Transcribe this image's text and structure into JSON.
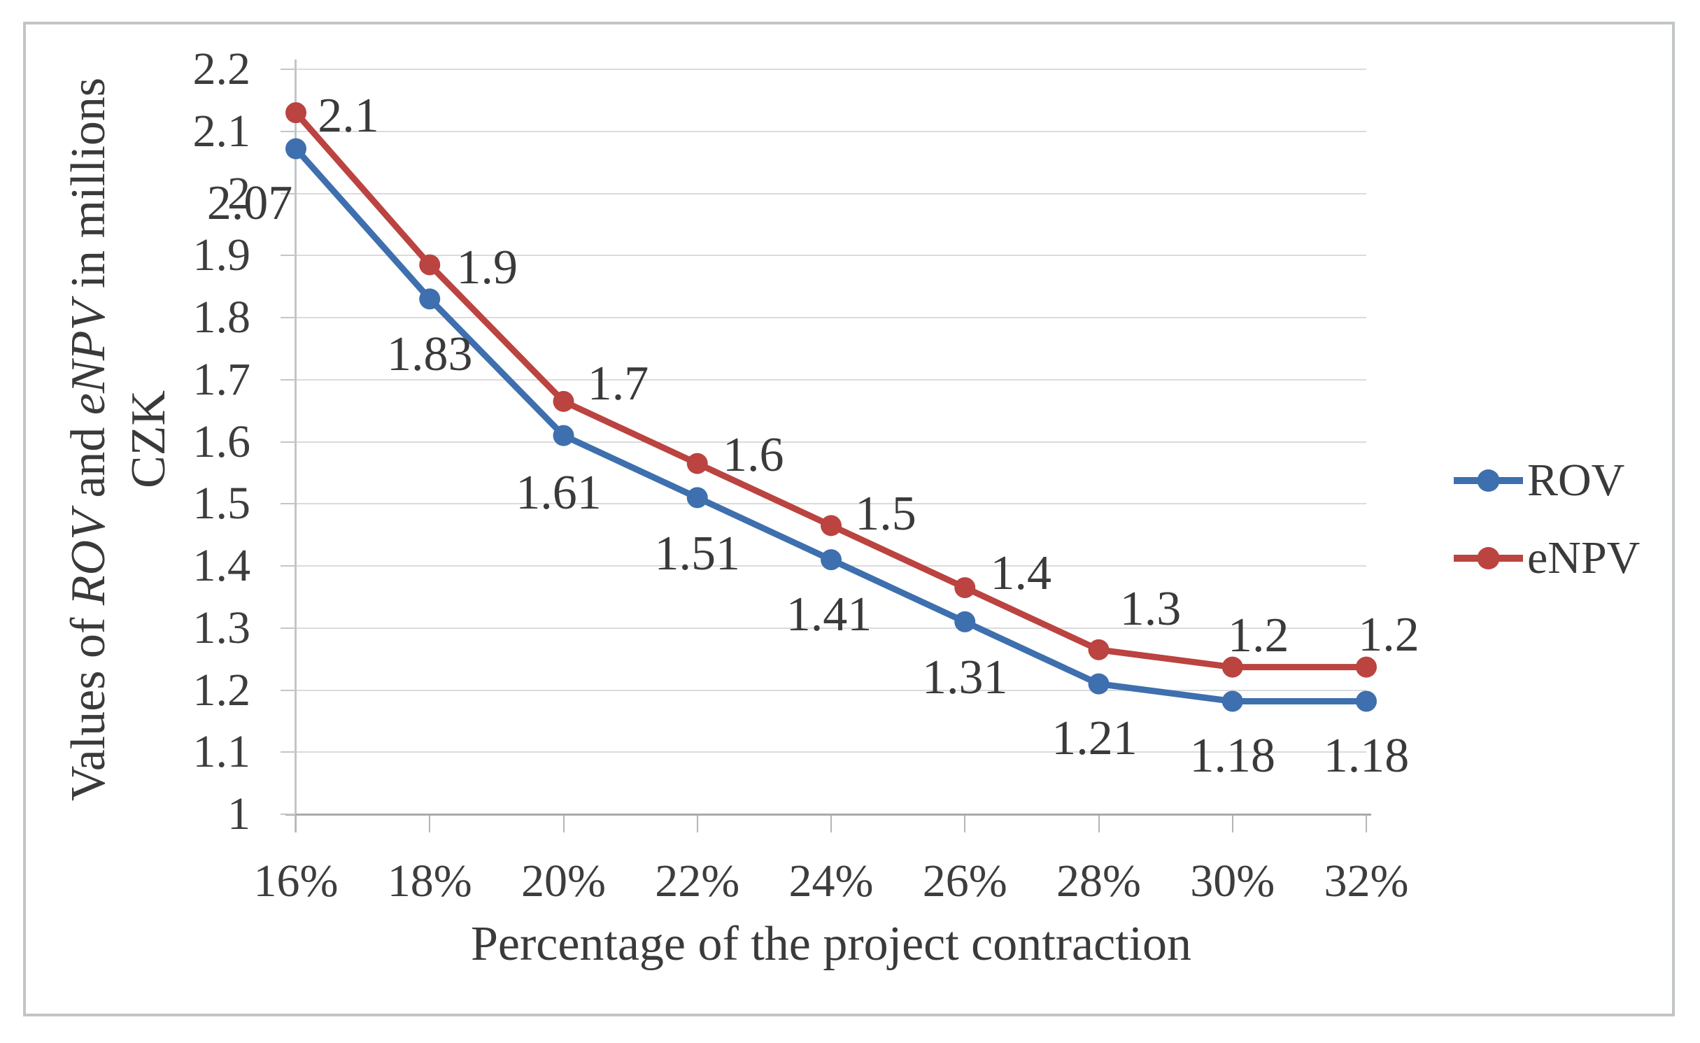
{
  "chart_data": {
    "type": "line",
    "title": "",
    "xlabel": "Percentage of the project contraction",
    "ylabel_lines": [
      {
        "parts": [
          {
            "text": "Values of ",
            "italic": false
          },
          {
            "text": "ROV",
            "italic": true
          },
          {
            "text": " and ",
            "italic": false
          },
          {
            "text": "eNPV",
            "italic": true
          },
          {
            "text": " in millions",
            "italic": false
          }
        ]
      },
      {
        "parts": [
          {
            "text": "CZK",
            "italic": false
          }
        ]
      }
    ],
    "categories": [
      "16%",
      "18%",
      "20%",
      "22%",
      "24%",
      "26%",
      "28%",
      "30%",
      "32%"
    ],
    "series": [
      {
        "name": "ROV",
        "color": "#3e6fae",
        "values": [
          2.07,
          1.83,
          1.61,
          1.51,
          1.41,
          1.31,
          1.21,
          1.18,
          1.18
        ],
        "labels": [
          "2.07",
          "1.83",
          "1.61",
          "1.51",
          "1.41",
          "1.31",
          "1.21",
          "1.18",
          "1.18"
        ],
        "marker_values_estimated": [
          2.072,
          1.83,
          1.61,
          1.51,
          1.41,
          1.31,
          1.21,
          1.182,
          1.182
        ]
      },
      {
        "name": "eNPV",
        "color": "#bb4340",
        "values": [
          2.1,
          1.9,
          1.7,
          1.6,
          1.5,
          1.4,
          1.3,
          1.2,
          1.2
        ],
        "labels": [
          "2.1",
          "1.9",
          "1.7",
          "1.6",
          "1.5",
          "1.4",
          "1.3",
          "1.2",
          "1.2"
        ],
        "marker_values_estimated": [
          2.13,
          1.885,
          1.665,
          1.565,
          1.465,
          1.365,
          1.265,
          1.237,
          1.237
        ]
      }
    ],
    "y_ticks": [
      "2.2",
      "2.1",
      "2",
      "1.9",
      "1.8",
      "1.7",
      "1.6",
      "1.5",
      "1.4",
      "1.3",
      "1.2",
      "1.1",
      "1"
    ],
    "ylim": [
      1,
      2.2
    ],
    "grid": "horizontal",
    "legend_position": "right"
  },
  "legend": {
    "items": [
      {
        "label": "ROV",
        "color": "#3e6fae"
      },
      {
        "label": "eNPV",
        "color": "#bb4340"
      }
    ]
  },
  "palette": {
    "text": "#3a3a3a",
    "gridline": "#dbdbdb",
    "axis_line": "#a7aaac",
    "figure_border": "#c1c5c7",
    "background": "#ffffff"
  }
}
